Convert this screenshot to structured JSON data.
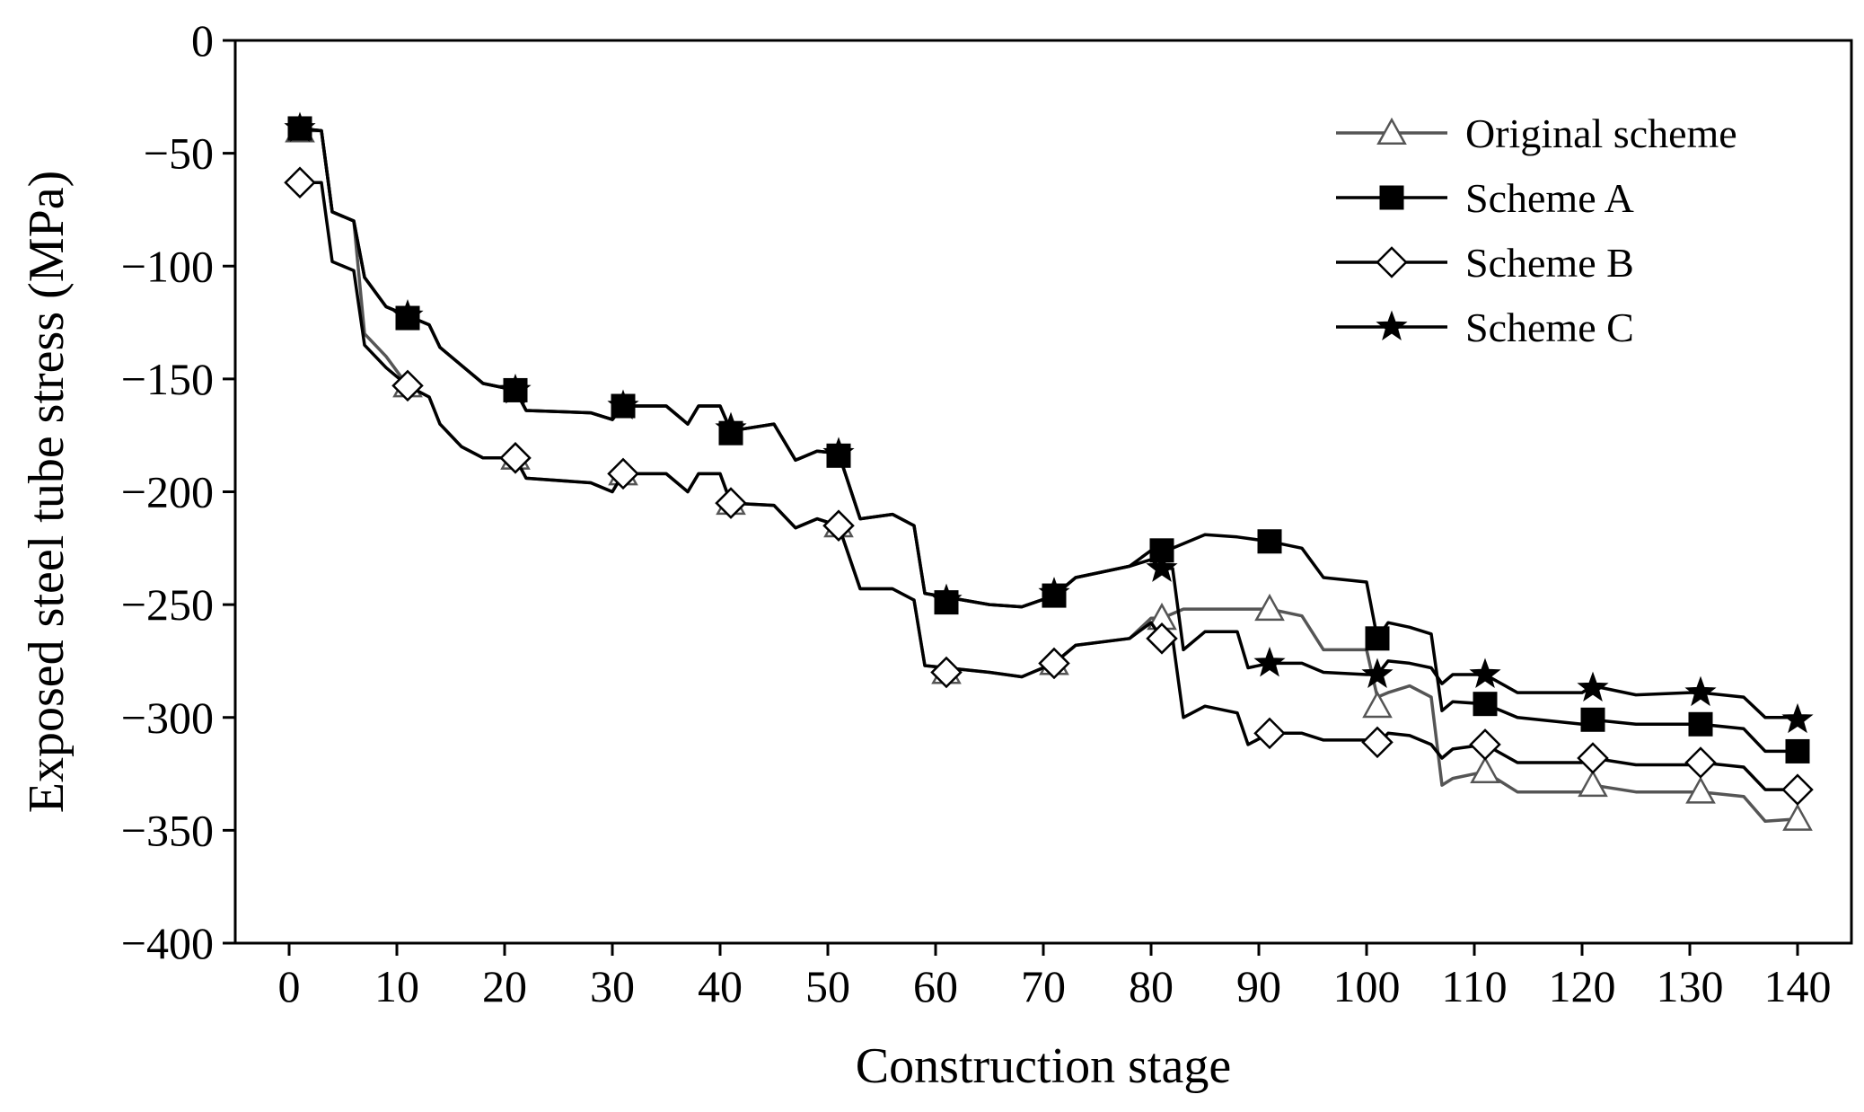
{
  "chart_data": {
    "type": "line",
    "title": "",
    "xlabel": "Construction stage",
    "ylabel": "Exposed steel tube stress (MPa)",
    "xlim": [
      -5,
      145
    ],
    "ylim": [
      -400,
      0
    ],
    "xticks": [
      0,
      10,
      20,
      30,
      40,
      50,
      60,
      70,
      80,
      90,
      100,
      110,
      120,
      130,
      140
    ],
    "yticks": [
      0,
      -50,
      -100,
      -150,
      -200,
      -250,
      -300,
      -350,
      -400
    ],
    "xtick_labels": [
      "0",
      "10",
      "20",
      "30",
      "40",
      "50",
      "60",
      "70",
      "80",
      "90",
      "100",
      "110",
      "120",
      "130",
      "140"
    ],
    "ytick_labels": [
      "0",
      "−50",
      "−100",
      "−150",
      "−200",
      "−250",
      "−300",
      "−350",
      "−400"
    ],
    "grid": false,
    "legend_position": "top-right",
    "series": [
      {
        "name": "Original scheme",
        "color": "#555555",
        "marker": "triangle-open",
        "curve": [
          [
            1,
            -40
          ],
          [
            3,
            -40
          ],
          [
            4,
            -76
          ],
          [
            6,
            -80
          ],
          [
            7,
            -130
          ],
          [
            9,
            -140
          ],
          [
            11,
            -153
          ],
          [
            13,
            -158
          ],
          [
            14,
            -170
          ],
          [
            16,
            -180
          ],
          [
            18,
            -185
          ],
          [
            21,
            -185
          ],
          [
            22,
            -194
          ],
          [
            28,
            -196
          ],
          [
            30,
            -200
          ],
          [
            31,
            -192
          ],
          [
            35,
            -192
          ],
          [
            37,
            -200
          ],
          [
            38,
            -192
          ],
          [
            40,
            -192
          ],
          [
            41,
            -205
          ],
          [
            45,
            -206
          ],
          [
            47,
            -216
          ],
          [
            49,
            -212
          ],
          [
            51,
            -215
          ],
          [
            53,
            -243
          ],
          [
            56,
            -243
          ],
          [
            58,
            -248
          ],
          [
            59,
            -277
          ],
          [
            65,
            -280
          ],
          [
            68,
            -282
          ],
          [
            71,
            -276
          ],
          [
            73,
            -268
          ],
          [
            78,
            -265
          ],
          [
            80,
            -256
          ],
          [
            81,
            -256
          ],
          [
            83,
            -252
          ],
          [
            88,
            -252
          ],
          [
            91,
            -252
          ],
          [
            94,
            -255
          ],
          [
            96,
            -270
          ],
          [
            100,
            -270
          ],
          [
            101,
            -291
          ],
          [
            102,
            -289
          ],
          [
            104,
            -286
          ],
          [
            106,
            -291
          ],
          [
            107,
            -330
          ],
          [
            108,
            -327
          ],
          [
            111,
            -324
          ],
          [
            114,
            -333
          ],
          [
            120,
            -333
          ],
          [
            121,
            -330
          ],
          [
            125,
            -333
          ],
          [
            130,
            -333
          ],
          [
            131,
            -333
          ],
          [
            135,
            -335
          ],
          [
            137,
            -346
          ],
          [
            140,
            -345
          ]
        ],
        "markers": {
          "x": [
            1,
            11,
            21,
            31,
            41,
            51,
            61,
            71,
            81,
            91,
            101,
            111,
            121,
            131,
            140
          ],
          "y": [
            -40,
            -153,
            -185,
            -192,
            -205,
            -215,
            -280,
            -276,
            -256,
            -252,
            -295,
            -324,
            -330,
            -333,
            -345
          ]
        }
      },
      {
        "name": "Scheme A",
        "color": "#000000",
        "marker": "square-filled",
        "curve": [
          [
            1,
            -39
          ],
          [
            3,
            -40
          ],
          [
            4,
            -76
          ],
          [
            6,
            -80
          ],
          [
            7,
            -105
          ],
          [
            9,
            -118
          ],
          [
            11,
            -122
          ],
          [
            13,
            -126
          ],
          [
            14,
            -136
          ],
          [
            16,
            -144
          ],
          [
            18,
            -152
          ],
          [
            21,
            -155
          ],
          [
            22,
            -164
          ],
          [
            28,
            -165
          ],
          [
            30,
            -168
          ],
          [
            31,
            -162
          ],
          [
            35,
            -162
          ],
          [
            37,
            -170
          ],
          [
            38,
            -162
          ],
          [
            40,
            -162
          ],
          [
            41,
            -173
          ],
          [
            45,
            -170
          ],
          [
            47,
            -186
          ],
          [
            49,
            -182
          ],
          [
            51,
            -183
          ],
          [
            53,
            -212
          ],
          [
            56,
            -210
          ],
          [
            58,
            -215
          ],
          [
            59,
            -245
          ],
          [
            65,
            -250
          ],
          [
            68,
            -251
          ],
          [
            71,
            -246
          ],
          [
            73,
            -238
          ],
          [
            78,
            -233
          ],
          [
            80,
            -226
          ],
          [
            81,
            -226
          ],
          [
            82,
            -225
          ],
          [
            85,
            -219
          ],
          [
            88,
            -220
          ],
          [
            91,
            -222
          ],
          [
            94,
            -225
          ],
          [
            96,
            -238
          ],
          [
            100,
            -240
          ],
          [
            101,
            -265
          ],
          [
            102,
            -258
          ],
          [
            104,
            -260
          ],
          [
            106,
            -263
          ],
          [
            107,
            -297
          ],
          [
            108,
            -293
          ],
          [
            111,
            -294
          ],
          [
            114,
            -300
          ],
          [
            120,
            -303
          ],
          [
            121,
            -301
          ],
          [
            125,
            -303
          ],
          [
            130,
            -303
          ],
          [
            131,
            -303
          ],
          [
            135,
            -305
          ],
          [
            137,
            -315
          ],
          [
            140,
            -315
          ]
        ],
        "markers": {
          "x": [
            1,
            11,
            21,
            31,
            41,
            51,
            61,
            71,
            81,
            91,
            101,
            111,
            121,
            131,
            140
          ],
          "y": [
            -39,
            -123,
            -155,
            -162,
            -174,
            -184,
            -249,
            -246,
            -226,
            -222,
            -265,
            -294,
            -301,
            -303,
            -315
          ]
        }
      },
      {
        "name": "Scheme B",
        "color": "#000000",
        "marker": "diamond-open",
        "curve": [
          [
            1,
            -63
          ],
          [
            3,
            -63
          ],
          [
            4,
            -98
          ],
          [
            6,
            -102
          ],
          [
            7,
            -135
          ],
          [
            9,
            -145
          ],
          [
            11,
            -153
          ],
          [
            13,
            -158
          ],
          [
            14,
            -170
          ],
          [
            16,
            -180
          ],
          [
            18,
            -185
          ],
          [
            21,
            -185
          ],
          [
            22,
            -194
          ],
          [
            28,
            -196
          ],
          [
            30,
            -200
          ],
          [
            31,
            -192
          ],
          [
            35,
            -192
          ],
          [
            37,
            -200
          ],
          [
            38,
            -192
          ],
          [
            40,
            -192
          ],
          [
            41,
            -205
          ],
          [
            45,
            -206
          ],
          [
            47,
            -216
          ],
          [
            49,
            -212
          ],
          [
            51,
            -215
          ],
          [
            53,
            -243
          ],
          [
            56,
            -243
          ],
          [
            58,
            -248
          ],
          [
            59,
            -277
          ],
          [
            65,
            -280
          ],
          [
            68,
            -282
          ],
          [
            71,
            -276
          ],
          [
            73,
            -268
          ],
          [
            78,
            -265
          ],
          [
            80,
            -258
          ],
          [
            81,
            -265
          ],
          [
            82,
            -265
          ],
          [
            83,
            -300
          ],
          [
            85,
            -295
          ],
          [
            88,
            -298
          ],
          [
            89,
            -312
          ],
          [
            91,
            -307
          ],
          [
            94,
            -307
          ],
          [
            96,
            -310
          ],
          [
            100,
            -310
          ],
          [
            101,
            -312
          ],
          [
            102,
            -307
          ],
          [
            104,
            -308
          ],
          [
            106,
            -312
          ],
          [
            107,
            -318
          ],
          [
            108,
            -314
          ],
          [
            111,
            -312
          ],
          [
            114,
            -320
          ],
          [
            120,
            -320
          ],
          [
            121,
            -318
          ],
          [
            125,
            -321
          ],
          [
            130,
            -321
          ],
          [
            131,
            -320
          ],
          [
            135,
            -322
          ],
          [
            137,
            -332
          ],
          [
            140,
            -332
          ]
        ],
        "markers": {
          "x": [
            1,
            11,
            21,
            31,
            41,
            51,
            61,
            71,
            81,
            91,
            101,
            111,
            121,
            131,
            140
          ],
          "y": [
            -63,
            -153,
            -185,
            -192,
            -205,
            -215,
            -280,
            -276,
            -265,
            -307,
            -311,
            -312,
            -318,
            -320,
            -332
          ]
        }
      },
      {
        "name": "Scheme C",
        "color": "#000000",
        "marker": "star-filled",
        "curve": [
          [
            1,
            -39
          ],
          [
            3,
            -40
          ],
          [
            4,
            -76
          ],
          [
            6,
            -80
          ],
          [
            7,
            -105
          ],
          [
            9,
            -118
          ],
          [
            11,
            -122
          ],
          [
            13,
            -126
          ],
          [
            14,
            -136
          ],
          [
            16,
            -144
          ],
          [
            18,
            -152
          ],
          [
            21,
            -155
          ],
          [
            22,
            -164
          ],
          [
            28,
            -165
          ],
          [
            30,
            -168
          ],
          [
            31,
            -162
          ],
          [
            35,
            -162
          ],
          [
            37,
            -170
          ],
          [
            38,
            -162
          ],
          [
            40,
            -162
          ],
          [
            41,
            -173
          ],
          [
            45,
            -170
          ],
          [
            47,
            -186
          ],
          [
            49,
            -182
          ],
          [
            51,
            -183
          ],
          [
            53,
            -212
          ],
          [
            56,
            -210
          ],
          [
            58,
            -215
          ],
          [
            59,
            -245
          ],
          [
            65,
            -250
          ],
          [
            68,
            -251
          ],
          [
            71,
            -246
          ],
          [
            73,
            -238
          ],
          [
            78,
            -233
          ],
          [
            80,
            -230
          ],
          [
            81,
            -234
          ],
          [
            82,
            -234
          ],
          [
            83,
            -270
          ],
          [
            85,
            -262
          ],
          [
            88,
            -262
          ],
          [
            89,
            -278
          ],
          [
            91,
            -276
          ],
          [
            94,
            -276
          ],
          [
            96,
            -280
          ],
          [
            100,
            -281
          ],
          [
            101,
            -281
          ],
          [
            102,
            -275
          ],
          [
            104,
            -276
          ],
          [
            106,
            -278
          ],
          [
            107,
            -285
          ],
          [
            108,
            -281
          ],
          [
            111,
            -281
          ],
          [
            114,
            -289
          ],
          [
            120,
            -289
          ],
          [
            121,
            -286
          ],
          [
            125,
            -290
          ],
          [
            130,
            -289
          ],
          [
            131,
            -289
          ],
          [
            135,
            -291
          ],
          [
            137,
            -300
          ],
          [
            140,
            -300
          ]
        ],
        "markers": {
          "x": [
            1,
            11,
            21,
            31,
            41,
            51,
            61,
            71,
            81,
            91,
            101,
            111,
            121,
            131,
            140
          ],
          "y": [
            -39,
            -122,
            -155,
            -162,
            -172,
            -183,
            -248,
            -245,
            -234,
            -276,
            -281,
            -281,
            -287,
            -289,
            -301
          ]
        }
      }
    ]
  }
}
